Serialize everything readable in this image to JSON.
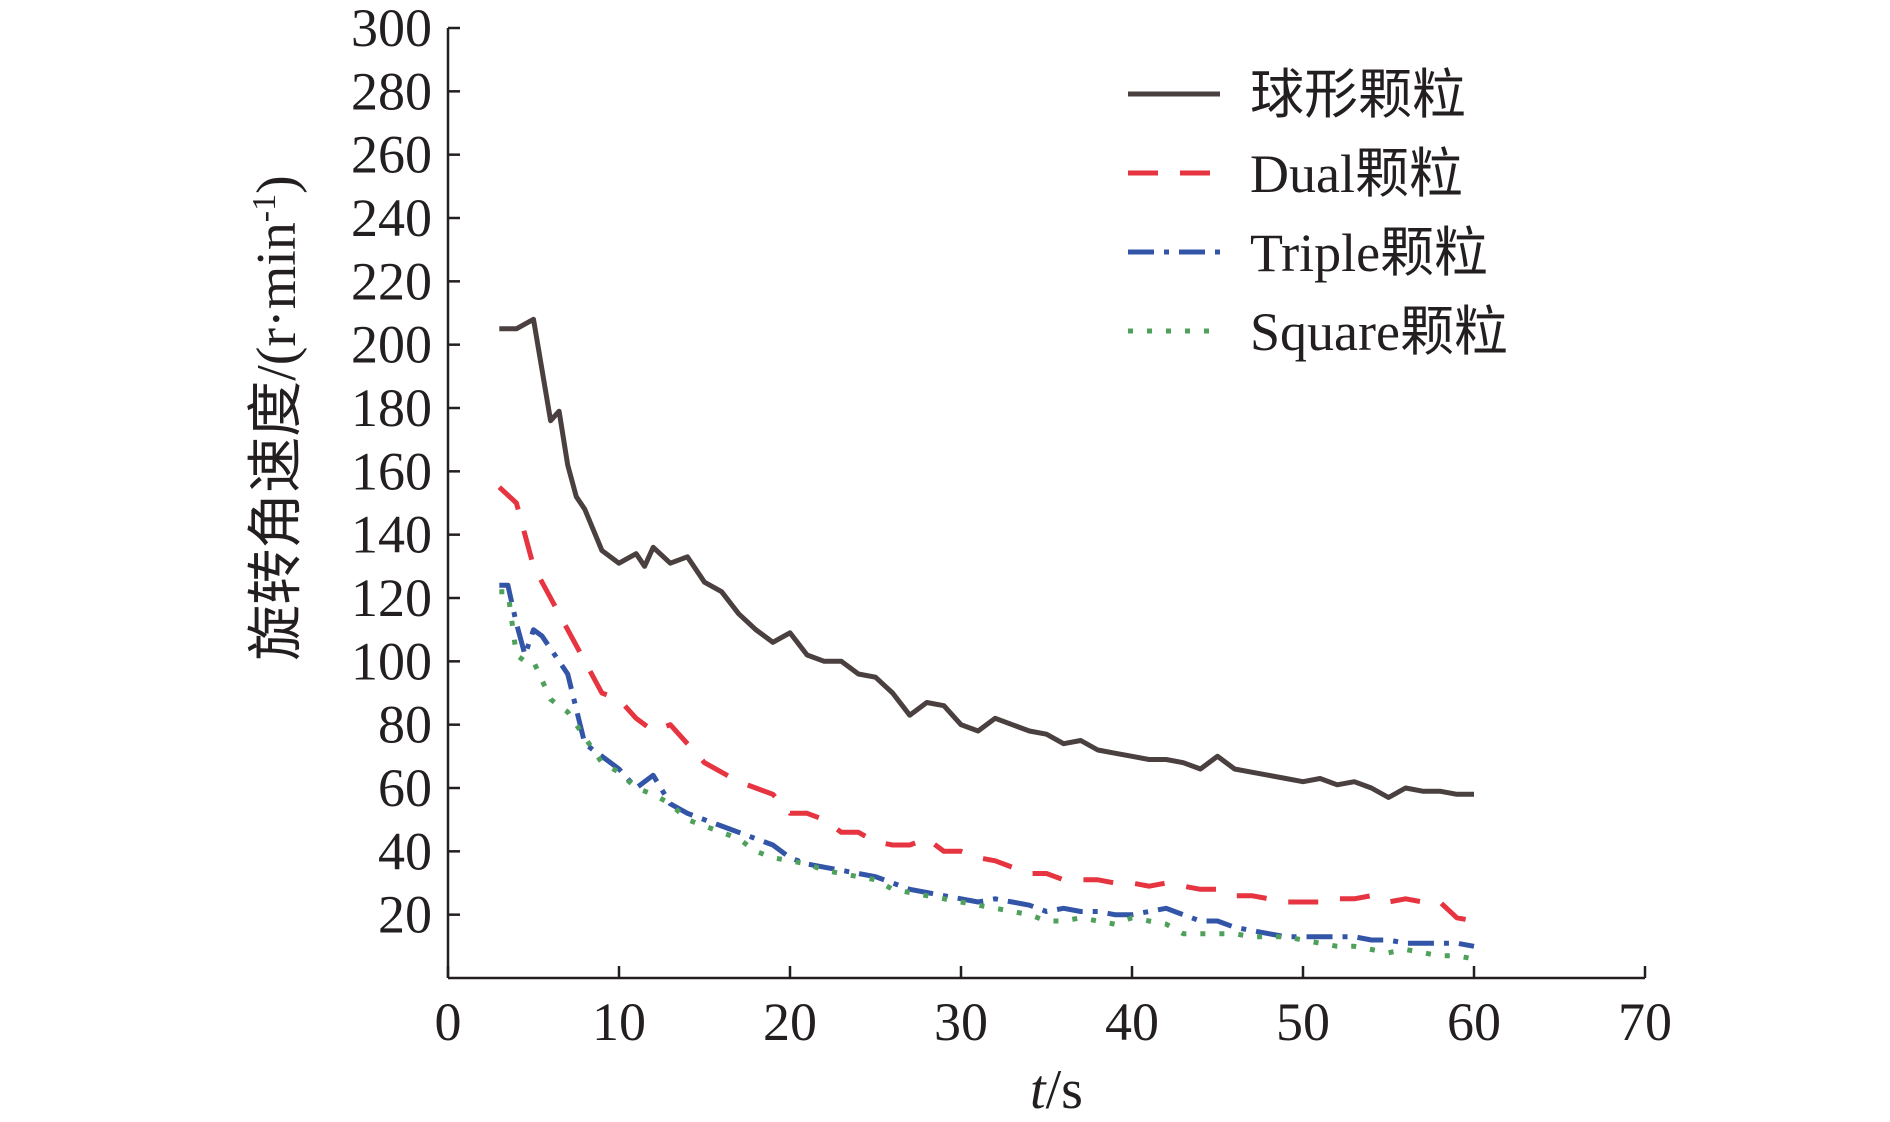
{
  "chart_data": {
    "type": "line",
    "title": "",
    "xlabel_italic": "t",
    "xlabel_rest": "/s",
    "ylabel_main": "旋转角速度/(r·min",
    "ylabel_sup": "-1",
    "ylabel_end": ")",
    "xlim": [
      0,
      70
    ],
    "ylim": [
      0,
      300
    ],
    "xticks": [
      0,
      10,
      20,
      30,
      40,
      50,
      60,
      70
    ],
    "yticks": [
      20,
      40,
      60,
      80,
      100,
      120,
      140,
      160,
      180,
      200,
      220,
      240,
      260,
      280,
      300
    ],
    "grid": false,
    "legend_position": "top-right",
    "series": [
      {
        "name": "球形颗粒",
        "color": "#4a4040",
        "style": "solid",
        "x": [
          3,
          4,
          5,
          6,
          6.5,
          7,
          7.5,
          8,
          9,
          10,
          11,
          11.5,
          12,
          13,
          14,
          15,
          16,
          17,
          18,
          19,
          20,
          21,
          22,
          23,
          24,
          25,
          26,
          27,
          28,
          29,
          30,
          31,
          32,
          33,
          34,
          35,
          36,
          37,
          38,
          39,
          40,
          41,
          42,
          43,
          44,
          45,
          46,
          47,
          48,
          49,
          50,
          51,
          52,
          53,
          54,
          55,
          56,
          57,
          58,
          59,
          60
        ],
        "y": [
          205,
          205,
          208,
          176,
          179,
          162,
          152,
          148,
          135,
          131,
          134,
          130,
          136,
          131,
          133,
          125,
          122,
          115,
          110,
          106,
          109,
          102,
          100,
          100,
          96,
          95,
          90,
          83,
          87,
          86,
          80,
          78,
          82,
          80,
          78,
          77,
          74,
          75,
          72,
          71,
          70,
          69,
          69,
          68,
          66,
          70,
          66,
          65,
          64,
          63,
          62,
          63,
          61,
          62,
          60,
          57,
          60,
          59,
          59,
          58,
          58
        ]
      },
      {
        "name": "Dual颗粒",
        "color": "#e63440",
        "style": "dashed",
        "x": [
          3,
          4,
          5,
          6,
          7,
          8,
          9,
          10,
          11,
          12,
          13,
          14,
          15,
          16,
          17,
          18,
          19,
          20,
          21,
          22,
          23,
          24,
          25,
          26,
          27,
          28,
          29,
          30,
          31,
          32,
          33,
          34,
          35,
          36,
          37,
          38,
          39,
          40,
          41,
          42,
          43,
          44,
          45,
          46,
          47,
          48,
          49,
          50,
          51,
          52,
          53,
          54,
          55,
          56,
          57,
          58,
          59,
          60
        ],
        "y": [
          155,
          150,
          130,
          120,
          110,
          100,
          90,
          88,
          82,
          78,
          80,
          74,
          68,
          65,
          62,
          60,
          58,
          52,
          52,
          50,
          46,
          46,
          43,
          42,
          42,
          44,
          40,
          40,
          38,
          37,
          35,
          33,
          33,
          31,
          31,
          31,
          30,
          30,
          29,
          30,
          29,
          28,
          28,
          26,
          26,
          25,
          24,
          24,
          24,
          25,
          25,
          26,
          24,
          25,
          24,
          24,
          19,
          18
        ]
      },
      {
        "name": "Triple颗粒",
        "color": "#3355a8",
        "style": "dashdot",
        "x": [
          3,
          3.5,
          4,
          4.5,
          5,
          5.5,
          6,
          7,
          8,
          9,
          10,
          11,
          12,
          13,
          14,
          15,
          16,
          17,
          18,
          19,
          20,
          21,
          22,
          23,
          24,
          25,
          26,
          27,
          28,
          29,
          30,
          31,
          32,
          33,
          34,
          35,
          36,
          37,
          38,
          39,
          40,
          41,
          42,
          43,
          44,
          45,
          46,
          47,
          48,
          49,
          50,
          51,
          52,
          53,
          54,
          55,
          56,
          57,
          58,
          59,
          60
        ],
        "y": [
          124,
          124,
          112,
          102,
          110,
          108,
          104,
          96,
          74,
          70,
          66,
          60,
          64,
          55,
          52,
          50,
          48,
          46,
          44,
          42,
          38,
          36,
          35,
          34,
          33,
          32,
          30,
          28,
          27,
          26,
          25,
          24,
          25,
          24,
          23,
          21,
          22,
          21,
          21,
          20,
          20,
          21,
          22,
          20,
          18,
          18,
          16,
          15,
          14,
          13,
          13,
          13,
          13,
          13,
          12,
          12,
          11,
          11,
          11,
          11,
          10
        ]
      },
      {
        "name": "Square颗粒",
        "color": "#4fa05a",
        "style": "dotted",
        "x": [
          3,
          3.5,
          4,
          4.5,
          5,
          6,
          7,
          8,
          9,
          10,
          11,
          12,
          13,
          14,
          15,
          16,
          17,
          18,
          19,
          20,
          21,
          22,
          23,
          24,
          25,
          26,
          27,
          28,
          29,
          30,
          31,
          32,
          33,
          34,
          35,
          36,
          37,
          38,
          39,
          40,
          41,
          42,
          43,
          44,
          45,
          46,
          47,
          48,
          49,
          50,
          51,
          52,
          53,
          54,
          55,
          56,
          57,
          58,
          59,
          60
        ],
        "y": [
          122,
          122,
          102,
          100,
          100,
          88,
          84,
          76,
          68,
          65,
          60,
          58,
          55,
          50,
          48,
          46,
          44,
          40,
          38,
          37,
          36,
          34,
          33,
          32,
          31,
          28,
          27,
          26,
          25,
          24,
          23,
          22,
          21,
          20,
          18,
          18,
          19,
          18,
          17,
          19,
          18,
          17,
          14,
          14,
          14,
          14,
          13,
          13,
          13,
          12,
          11,
          10,
          10,
          9,
          8,
          9,
          8,
          7,
          7,
          6
        ]
      }
    ]
  }
}
